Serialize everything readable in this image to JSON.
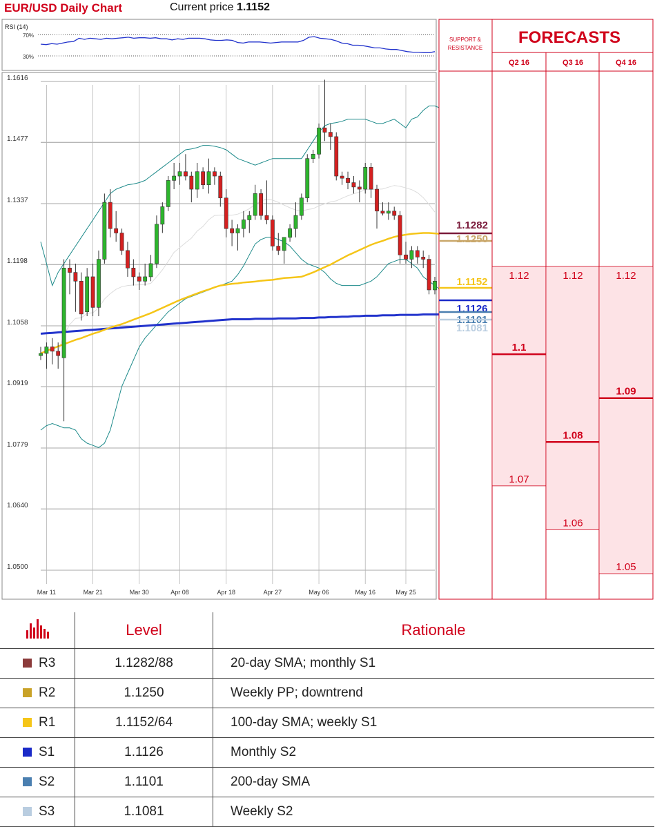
{
  "header": {
    "title": "EUR/USD Daily Chart",
    "price_label": "Current price",
    "price_value": "1.1152"
  },
  "colors": {
    "title_red": "#d0021b",
    "bull": "#2db52d",
    "bear": "#d42020",
    "bollinger": "#1d8a8a",
    "sma20": "#dcdcdc",
    "sma100": "#f5c518",
    "sma200": "#2233cc",
    "forecast_fill": "#fde3e6",
    "forecast_line": "#d0021b"
  },
  "chart_data": [
    {
      "type": "line",
      "title": "RSI (14)",
      "yticks": [
        "70%",
        "30%"
      ],
      "ylim": [
        20,
        80
      ],
      "series": [
        {
          "values": [
            52,
            51,
            53,
            52,
            54,
            56,
            57,
            63,
            61,
            63,
            62,
            61,
            63,
            62,
            63,
            64,
            65,
            63,
            64,
            64,
            63,
            64,
            62,
            62,
            60,
            62,
            61,
            63,
            63,
            63,
            62,
            60,
            59,
            59,
            60,
            59,
            55,
            54,
            56,
            56,
            56,
            55,
            54,
            55,
            56,
            56,
            56,
            56,
            59,
            65,
            66,
            63,
            62,
            61,
            58,
            54,
            53,
            50,
            50,
            49,
            47,
            45,
            45,
            43,
            42,
            42,
            40,
            38,
            37,
            37,
            36,
            36,
            38
          ]
        }
      ]
    },
    {
      "type": "candlestick",
      "title": "",
      "ylim": [
        1.05,
        1.1616
      ],
      "yticks": [
        "1.1616",
        "1.1477",
        "1.1337",
        "1.1198",
        "1.1058",
        "1.0919",
        "1.0779",
        "1.0640",
        "1.0500"
      ],
      "xticks": [
        "Mar 11",
        "Mar 21",
        "Mar 30",
        "Apr 08",
        "Apr 18",
        "Apr 27",
        "May 06",
        "May 16",
        "May 25"
      ],
      "ohlc": [
        [
          1.099,
          1.101,
          1.098,
          1.0995
        ],
        [
          1.0995,
          1.102,
          1.096,
          1.101
        ],
        [
          1.101,
          1.103,
          1.097,
          1.1
        ],
        [
          1.1,
          1.102,
          1.096,
          1.099
        ],
        [
          1.0985,
          1.121,
          1.084,
          1.119
        ],
        [
          1.119,
          1.121,
          1.113,
          1.118
        ],
        [
          1.118,
          1.12,
          1.109,
          1.116
        ],
        [
          1.116,
          1.118,
          1.107,
          1.1085
        ],
        [
          1.109,
          1.119,
          1.108,
          1.117
        ],
        [
          1.117,
          1.12,
          1.108,
          1.11
        ],
        [
          1.11,
          1.123,
          1.108,
          1.121
        ],
        [
          1.121,
          1.136,
          1.12,
          1.134
        ],
        [
          1.134,
          1.137,
          1.126,
          1.128
        ],
        [
          1.128,
          1.132,
          1.125,
          1.127
        ],
        [
          1.127,
          1.128,
          1.122,
          1.123
        ],
        [
          1.123,
          1.125,
          1.117,
          1.119
        ],
        [
          1.119,
          1.121,
          1.115,
          1.117
        ],
        [
          1.117,
          1.118,
          1.114,
          1.116
        ],
        [
          1.116,
          1.12,
          1.115,
          1.117
        ],
        [
          1.117,
          1.122,
          1.116,
          1.12
        ],
        [
          1.12,
          1.131,
          1.119,
          1.129
        ],
        [
          1.129,
          1.134,
          1.127,
          1.133
        ],
        [
          1.133,
          1.14,
          1.132,
          1.139
        ],
        [
          1.139,
          1.143,
          1.137,
          1.14
        ],
        [
          1.14,
          1.143,
          1.138,
          1.141
        ],
        [
          1.141,
          1.145,
          1.139,
          1.14
        ],
        [
          1.14,
          1.141,
          1.134,
          1.137
        ],
        [
          1.137,
          1.143,
          1.135,
          1.141
        ],
        [
          1.141,
          1.142,
          1.137,
          1.138
        ],
        [
          1.138,
          1.144,
          1.136,
          1.141
        ],
        [
          1.141,
          1.142,
          1.138,
          1.14
        ],
        [
          1.14,
          1.141,
          1.133,
          1.135
        ],
        [
          1.135,
          1.137,
          1.126,
          1.128
        ],
        [
          1.128,
          1.13,
          1.124,
          1.127
        ],
        [
          1.127,
          1.129,
          1.123,
          1.128
        ],
        [
          1.128,
          1.132,
          1.126,
          1.13
        ],
        [
          1.13,
          1.132,
          1.127,
          1.131
        ],
        [
          1.131,
          1.138,
          1.13,
          1.136
        ],
        [
          1.136,
          1.137,
          1.13,
          1.131
        ],
        [
          1.131,
          1.139,
          1.129,
          1.13
        ],
        [
          1.13,
          1.131,
          1.123,
          1.124
        ],
        [
          1.124,
          1.127,
          1.122,
          1.123
        ],
        [
          1.123,
          1.125,
          1.12,
          1.126
        ],
        [
          1.126,
          1.129,
          1.125,
          1.128
        ],
        [
          1.128,
          1.134,
          1.126,
          1.131
        ],
        [
          1.131,
          1.136,
          1.13,
          1.135
        ],
        [
          1.135,
          1.145,
          1.134,
          1.144
        ],
        [
          1.144,
          1.146,
          1.143,
          1.145
        ],
        [
          1.145,
          1.152,
          1.144,
          1.151
        ],
        [
          1.151,
          1.162,
          1.148,
          1.15
        ],
        [
          1.15,
          1.152,
          1.146,
          1.149
        ],
        [
          1.149,
          1.15,
          1.139,
          1.14
        ],
        [
          1.14,
          1.141,
          1.138,
          1.1395
        ],
        [
          1.1395,
          1.141,
          1.137,
          1.1385
        ],
        [
          1.1385,
          1.14,
          1.136,
          1.1375
        ],
        [
          1.1375,
          1.139,
          1.134,
          1.137
        ],
        [
          1.137,
          1.143,
          1.136,
          1.142
        ],
        [
          1.142,
          1.143,
          1.135,
          1.137
        ],
        [
          1.137,
          1.138,
          1.128,
          1.132
        ],
        [
          1.132,
          1.134,
          1.131,
          1.1315
        ],
        [
          1.1315,
          1.134,
          1.13,
          1.132
        ],
        [
          1.132,
          1.133,
          1.13,
          1.131
        ],
        [
          1.131,
          1.132,
          1.12,
          1.122
        ],
        [
          1.122,
          1.125,
          1.12,
          1.121
        ],
        [
          1.121,
          1.124,
          1.119,
          1.123
        ],
        [
          1.123,
          1.124,
          1.12,
          1.1215
        ],
        [
          1.1215,
          1.123,
          1.119,
          1.121
        ],
        [
          1.121,
          1.122,
          1.113,
          1.114
        ],
        [
          1.114,
          1.117,
          1.113,
          1.116
        ]
      ],
      "sma100": [
        1.0995,
        1.1001,
        1.1006,
        1.1011,
        1.1016,
        1.1021,
        1.1026,
        1.103,
        1.1035,
        1.104,
        1.1044,
        1.1049,
        1.1054,
        1.1058,
        1.1062,
        1.1067,
        1.1072,
        1.1077,
        1.1082,
        1.1087,
        1.1093,
        1.1099,
        1.1105,
        1.1111,
        1.1117,
        1.1122,
        1.1127,
        1.1132,
        1.1137,
        1.1141,
        1.1146,
        1.115,
        1.1152,
        1.1154,
        1.1155,
        1.1157,
        1.1158,
        1.1159,
        1.1161,
        1.1162,
        1.1163,
        1.1165,
        1.1167,
        1.1168,
        1.1169,
        1.117,
        1.1175,
        1.118,
        1.1186,
        1.1192,
        1.1198,
        1.1205,
        1.1212,
        1.1219,
        1.1225,
        1.1231,
        1.1237,
        1.1243,
        1.1248,
        1.1252,
        1.1257,
        1.1261,
        1.1264,
        1.1266,
        1.1268,
        1.1269,
        1.127,
        1.127,
        1.1269,
        1.1268,
        1.1267,
        1.1266,
        1.1265
      ],
      "sma200": [
        1.104,
        1.1041,
        1.1042,
        1.1043,
        1.1044,
        1.1045,
        1.1046,
        1.1047,
        1.1048,
        1.1049,
        1.105,
        1.1051,
        1.1052,
        1.1053,
        1.1054,
        1.1055,
        1.1056,
        1.1057,
        1.1058,
        1.1059,
        1.106,
        1.1061,
        1.1062,
        1.1063,
        1.1064,
        1.1065,
        1.1066,
        1.1067,
        1.1068,
        1.1069,
        1.107,
        1.1071,
        1.1072,
        1.1073,
        1.1073,
        1.1073,
        1.1073,
        1.1074,
        1.1074,
        1.1074,
        1.1074,
        1.1075,
        1.1075,
        1.1075,
        1.1075,
        1.1076,
        1.1076,
        1.1076,
        1.1077,
        1.1077,
        1.1078,
        1.1078,
        1.1079,
        1.1079,
        1.108,
        1.108,
        1.1081,
        1.1081,
        1.1081,
        1.1082,
        1.1082,
        1.1082,
        1.1083,
        1.1083,
        1.1083,
        1.1083,
        1.1084,
        1.1084,
        1.1084,
        1.1084,
        1.1084,
        1.1084,
        1.1084
      ],
      "bollinger_upper": [
        1.125,
        1.12,
        1.115,
        1.118,
        1.12,
        1.122,
        1.124,
        1.126,
        1.128,
        1.13,
        1.132,
        1.134,
        1.136,
        1.137,
        1.1375,
        1.138,
        1.1382,
        1.1385,
        1.139,
        1.14,
        1.141,
        1.142,
        1.143,
        1.144,
        1.145,
        1.146,
        1.1462,
        1.1465,
        1.147,
        1.147,
        1.1468,
        1.1465,
        1.146,
        1.145,
        1.144,
        1.1435,
        1.143,
        1.1425,
        1.143,
        1.1435,
        1.144,
        1.144,
        1.144,
        1.144,
        1.144,
        1.144,
        1.146,
        1.148,
        1.15,
        1.1515,
        1.152,
        1.1522,
        1.1525,
        1.153,
        1.153,
        1.153,
        1.153,
        1.1525,
        1.152,
        1.152,
        1.1525,
        1.153,
        1.152,
        1.151,
        1.153,
        1.1535,
        1.155,
        1.156,
        1.156,
        1.1555,
        1.154,
        1.153,
        1.151
      ],
      "bollinger_lower": [
        1.082,
        1.083,
        1.0835,
        1.083,
        1.0825,
        1.0825,
        1.082,
        1.08,
        1.079,
        1.0785,
        1.078,
        1.079,
        1.082,
        1.087,
        1.092,
        1.095,
        1.098,
        1.101,
        1.103,
        1.1045,
        1.106,
        1.1075,
        1.109,
        1.11,
        1.111,
        1.112,
        1.1125,
        1.113,
        1.1135,
        1.114,
        1.1145,
        1.115,
        1.1155,
        1.116,
        1.1175,
        1.1195,
        1.122,
        1.1245,
        1.1255,
        1.126,
        1.126,
        1.1255,
        1.125,
        1.124,
        1.1225,
        1.121,
        1.12,
        1.1195,
        1.119,
        1.118,
        1.1165,
        1.1155,
        1.115,
        1.115,
        1.115,
        1.115,
        1.1155,
        1.116,
        1.117,
        1.1185,
        1.12,
        1.1205,
        1.121,
        1.121,
        1.12,
        1.119,
        1.117,
        1.116,
        1.115,
        1.114,
        1.113,
        1.112,
        1.1115
      ]
    }
  ],
  "support_resistance": {
    "header_line1": "SUPPORT &",
    "header_line2": "RESISTANCE",
    "levels": [
      {
        "value": "1.1282",
        "color": "#7a1a3a"
      },
      {
        "value": "1.1250",
        "color": "#c9a76a"
      },
      {
        "value": "1.1152",
        "color": "#f5c518"
      },
      {
        "value": "1.1126",
        "color": "#1a2ac8"
      },
      {
        "value": "1.1101",
        "color": "#4a7fb0"
      },
      {
        "value": "1.1081",
        "color": "#b9cde0"
      }
    ]
  },
  "forecasts": {
    "title": "FORECASTS",
    "columns": [
      {
        "label": "Q2 16",
        "high": "1.12",
        "mid": "1.1",
        "low": "1.07"
      },
      {
        "label": "Q3 16",
        "high": "1.12",
        "mid": "1.08",
        "low": "1.06"
      },
      {
        "label": "Q4 16",
        "high": "1.12",
        "mid": "1.09",
        "low": "1.05"
      }
    ]
  },
  "levels_table": {
    "headers": {
      "level": "Level",
      "rationale": "Rationale"
    },
    "rows": [
      {
        "name": "R3",
        "color": "#8b3a3a",
        "level": "1.1282/88",
        "rationale": "20-day SMA; monthly S1"
      },
      {
        "name": "R2",
        "color": "#c9a227",
        "level": "1.1250",
        "rationale": "Weekly PP; downtrend"
      },
      {
        "name": "R1",
        "color": "#f5c518",
        "level": "1.1152/64",
        "rationale": "100-day SMA; weekly S1"
      },
      {
        "name": "S1",
        "color": "#1a2ac8",
        "level": "1.1126",
        "rationale": "Monthly S2"
      },
      {
        "name": "S2",
        "color": "#4a7fb0",
        "level": "1.1101",
        "rationale": "200-day SMA"
      },
      {
        "name": "S3",
        "color": "#b9cde0",
        "level": "1.1081",
        "rationale": "Weekly S2"
      }
    ]
  }
}
